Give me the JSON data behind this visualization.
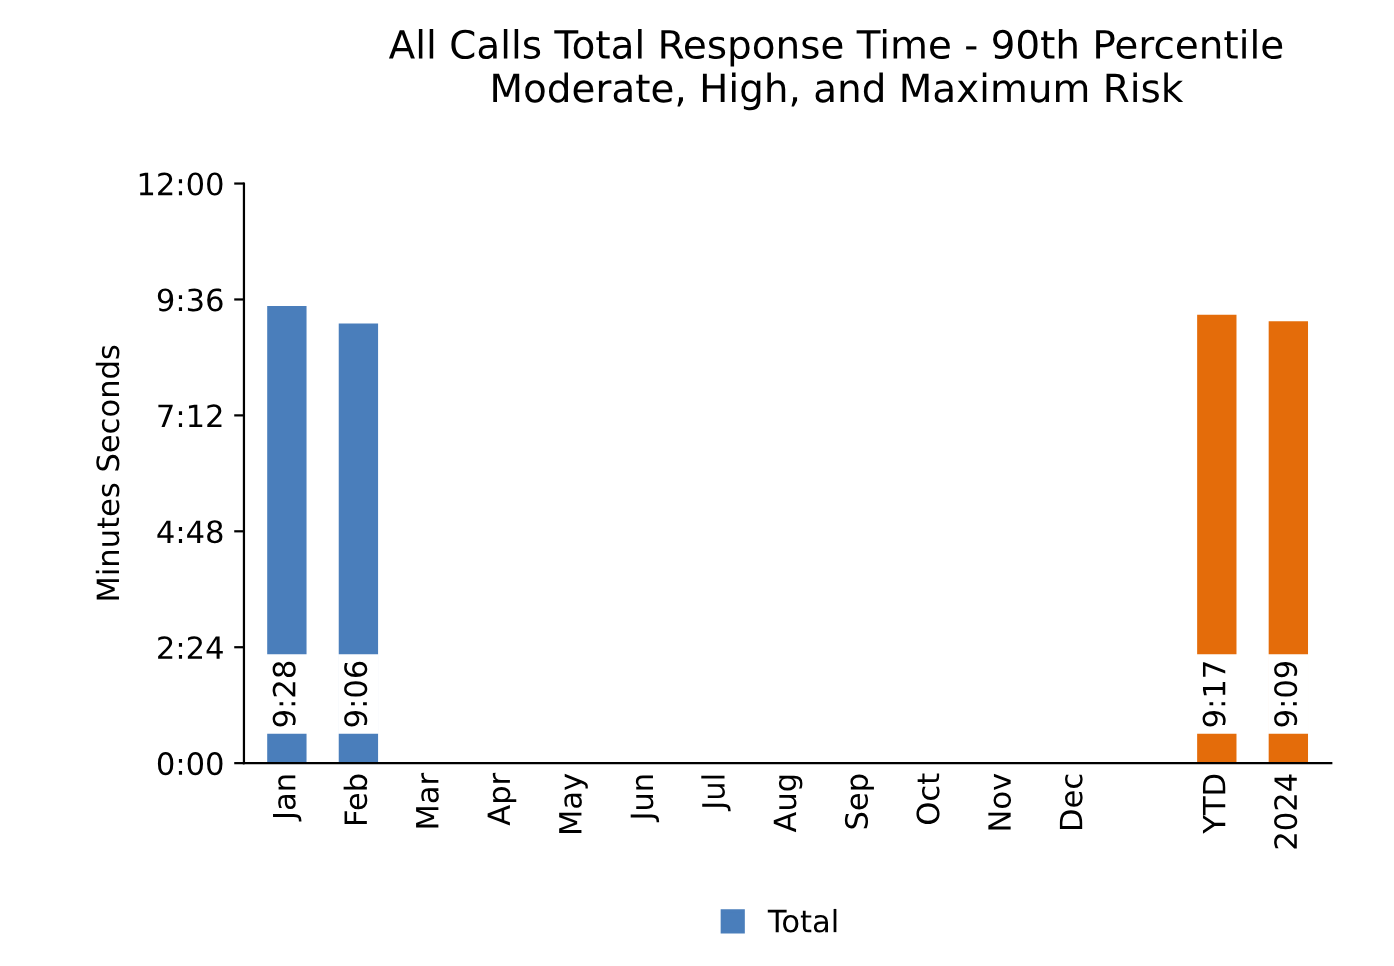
{
  "chart_data": {
    "type": "bar",
    "title": "All Calls Total Response Time - 90th Percentile\nModerate, High, and Maximum Risk",
    "ylabel": "Minutes Seconds",
    "categories": [
      "Jan",
      "Feb",
      "Mar",
      "Apr",
      "May",
      "Jun",
      "Jul",
      "Aug",
      "Sep",
      "Oct",
      "Nov",
      "Dec",
      null,
      "YTD",
      "2024"
    ],
    "series": [
      {
        "name": "Total",
        "color": "#4a7ebb",
        "colors": [
          "#4a7ebb",
          "#4a7ebb",
          null,
          null,
          null,
          null,
          null,
          null,
          null,
          null,
          null,
          null,
          null,
          "#e46c0a",
          "#e46c0a"
        ],
        "values": [
          568,
          546,
          null,
          null,
          null,
          null,
          null,
          null,
          null,
          null,
          null,
          null,
          null,
          557,
          549
        ],
        "value_labels": [
          "9:28",
          "9:06",
          null,
          null,
          null,
          null,
          null,
          null,
          null,
          null,
          null,
          null,
          null,
          "9:17",
          "9:09"
        ]
      }
    ],
    "ylim": [
      0,
      720
    ],
    "yticks": [
      {
        "value": 0,
        "label": "0:00"
      },
      {
        "value": 144,
        "label": "2:24"
      },
      {
        "value": 288,
        "label": "4:48"
      },
      {
        "value": 432,
        "label": "7:12"
      },
      {
        "value": 576,
        "label": "9:36"
      },
      {
        "value": 720,
        "label": "12:00"
      }
    ],
    "grid": false,
    "legend": "bottom"
  }
}
